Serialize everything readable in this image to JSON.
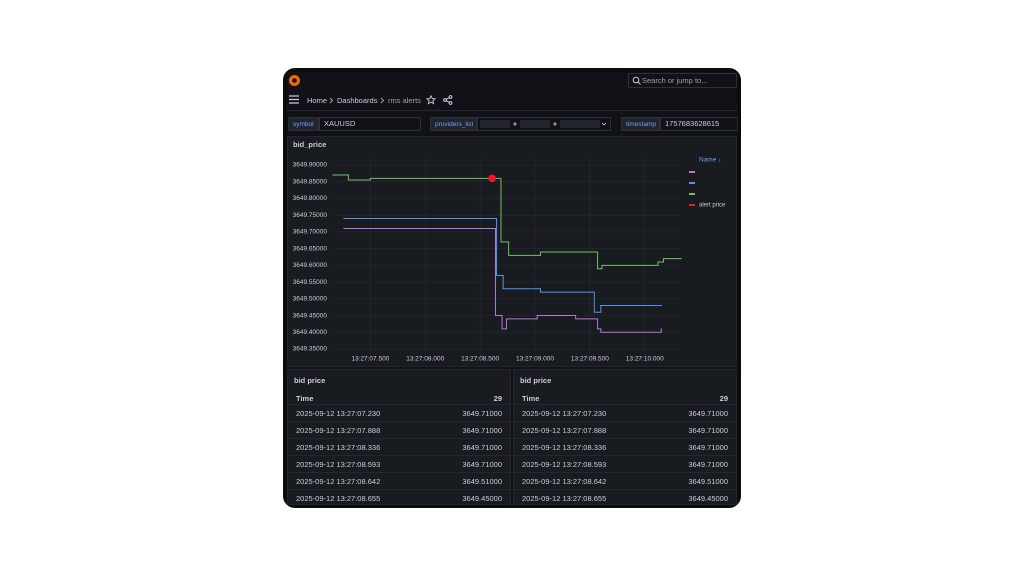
{
  "topbar": {
    "search_placeholder": "Search or jump to..."
  },
  "breadcrumb": [
    "Home",
    "Dashboards",
    "rms alerts"
  ],
  "variables": [
    {
      "label": "symbol",
      "value": "XAUUSD"
    },
    {
      "label": "providers_list"
    },
    {
      "label": "timestamp",
      "value": "1757683628615"
    }
  ],
  "chart_data": {
    "type": "line",
    "title": "bid_price",
    "legend_title": "Name ↓",
    "grid": true,
    "legend_position": "right",
    "xlim": [
      7.16,
      10.33
    ],
    "xticks": [
      {
        "value": 7.5,
        "label": "13:27:07.500"
      },
      {
        "value": 8.0,
        "label": "13:27:08.000"
      },
      {
        "value": 8.5,
        "label": "13:27:08.500"
      },
      {
        "value": 9.0,
        "label": "13:27:09.000"
      },
      {
        "value": 9.5,
        "label": "13:27:09.500"
      },
      {
        "value": 10.0,
        "label": "13:27:10.000"
      }
    ],
    "ylim": [
      3649.33,
      3649.92
    ],
    "yticks": [
      {
        "value": 3649.9,
        "label": "3649.90000"
      },
      {
        "value": 3649.85,
        "label": "3649.85000"
      },
      {
        "value": 3649.8,
        "label": "3649.80000"
      },
      {
        "value": 3649.75,
        "label": "3649.75000"
      },
      {
        "value": 3649.7,
        "label": "3649.70000"
      },
      {
        "value": 3649.65,
        "label": "3649.65000"
      },
      {
        "value": 3649.6,
        "label": "3649.60000"
      },
      {
        "value": 3649.55,
        "label": "3649.55000"
      },
      {
        "value": 3649.5,
        "label": "3649.50000"
      },
      {
        "value": 3649.45,
        "label": "3649.45000"
      },
      {
        "value": 3649.4,
        "label": "3649.40000"
      },
      {
        "value": 3649.35,
        "label": "3649.35000"
      }
    ],
    "series": [
      {
        "color": "#b877d9",
        "draw": "step",
        "x": [
          7.26,
          8.64,
          8.7,
          8.74,
          9.02,
          9.37,
          9.57,
          9.6,
          10.15
        ],
        "values": [
          3649.71,
          3649.45,
          3649.41,
          3649.44,
          3649.45,
          3649.44,
          3649.41,
          3649.4,
          3649.41
        ]
      },
      {
        "color": "#5794f2",
        "draw": "step",
        "x": [
          7.26,
          8.65,
          8.71,
          9.05,
          9.54,
          9.6,
          10.15
        ],
        "values": [
          3649.74,
          3649.57,
          3649.53,
          3649.52,
          3649.46,
          3649.48,
          3649.48
        ]
      },
      {
        "color": "#73bf69",
        "draw": "step",
        "x": [
          7.16,
          7.3,
          7.5,
          8.69,
          8.76,
          9.05,
          9.57,
          9.61,
          10.12,
          10.17,
          10.33
        ],
        "values": [
          3649.87,
          3649.855,
          3649.86,
          3649.67,
          3649.63,
          3649.64,
          3649.59,
          3649.6,
          3649.61,
          3649.62,
          3649.62
        ]
      },
      {
        "name": "alert price",
        "color": "#f2182c",
        "draw": "points",
        "x": [
          8.61
        ],
        "values": [
          3649.86
        ]
      }
    ]
  },
  "tables": [
    {
      "title": "bid price",
      "columns": [
        "Time",
        "29"
      ],
      "rows": [
        [
          "2025-09-12 13:27:07.230",
          "3649.71000"
        ],
        [
          "2025-09-12 13:27:07.888",
          "3649.71000"
        ],
        [
          "2025-09-12 13:27:08.336",
          "3649.71000"
        ],
        [
          "2025-09-12 13:27:08.593",
          "3649.71000"
        ],
        [
          "2025-09-12 13:27:08.642",
          "3649.51000"
        ],
        [
          "2025-09-12 13:27:08.655",
          "3649.45000"
        ]
      ]
    },
    {
      "title": "bid price",
      "columns": [
        "Time",
        "29"
      ],
      "rows": [
        [
          "2025-09-12 13:27:07.230",
          "3649.71000"
        ],
        [
          "2025-09-12 13:27:07.888",
          "3649.71000"
        ],
        [
          "2025-09-12 13:27:08.336",
          "3649.71000"
        ],
        [
          "2025-09-12 13:27:08.593",
          "3649.71000"
        ],
        [
          "2025-09-12 13:27:08.642",
          "3649.51000"
        ],
        [
          "2025-09-12 13:27:08.655",
          "3649.45000"
        ]
      ]
    }
  ]
}
